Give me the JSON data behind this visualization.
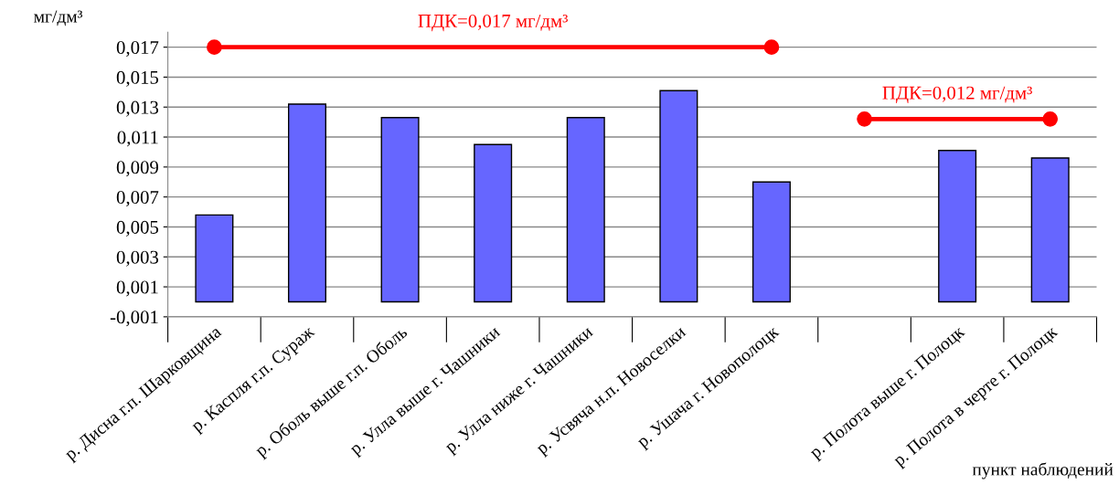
{
  "chart_data": {
    "type": "bar",
    "xlabel": "пункт наблюдений",
    "ylabel": "мг/дм³",
    "categories": [
      "р. Дисна г.п. Шарковщина",
      "р. Каспля г.п. Сураж",
      "р. Оболь выше г.п. Оболь",
      "р. Улла выше г. Чашники",
      "р. Улла ниже г. Чашники",
      "р. Усвяча н.п. Новоселки",
      "р. Ушача г. Новополоцк",
      null,
      "р. Полота выше г. Полоцк",
      "р. Полота в черте г. Полоцк"
    ],
    "series": [
      {
        "color": "#6666ff",
        "values": [
          0.0058,
          0.0132,
          0.0123,
          0.0105,
          0.0123,
          0.0141,
          0.008,
          null,
          0.0101,
          0.0096
        ]
      },
      {
        "type": "line",
        "name": "ПДК=0,017 мг/дм³",
        "color": "#ff0000",
        "values": [
          0.017,
          null,
          null,
          null,
          null,
          null,
          0.017,
          null,
          null,
          null
        ],
        "marker": "circle"
      },
      {
        "type": "line",
        "name": "ПДК=0,012 мг/дм³",
        "color": "#ff0000",
        "values": [
          null,
          null,
          null,
          null,
          null,
          null,
          null,
          0.0122,
          null,
          0.0122
        ],
        "marker": "circle"
      }
    ],
    "ylim": [
      -0.001,
      0.018
    ],
    "yticks": [
      {
        "value": -0.001,
        "label": "-0,001"
      },
      {
        "value": 0.001,
        "label": "0,001"
      },
      {
        "value": 0.003,
        "label": "0,003"
      },
      {
        "value": 0.005,
        "label": "0,005"
      },
      {
        "value": 0.007,
        "label": "0,007"
      },
      {
        "value": 0.009,
        "label": "0,009"
      },
      {
        "value": 0.011,
        "label": "0,011"
      },
      {
        "value": 0.013,
        "label": "0,013"
      },
      {
        "value": 0.015,
        "label": "0,015"
      },
      {
        "value": 0.017,
        "label": "0,017"
      }
    ],
    "grid": "y",
    "legend": false
  }
}
